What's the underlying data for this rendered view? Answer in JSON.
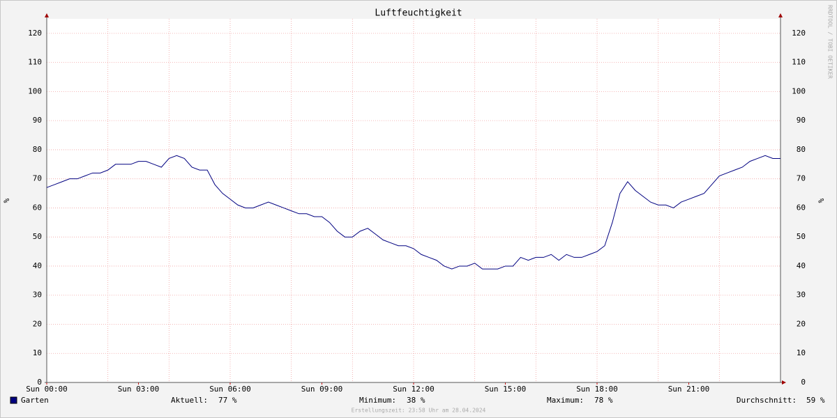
{
  "chart_data": {
    "type": "line",
    "title": "Luftfeuchtigkeit",
    "y_label": "%",
    "y2_label": "%",
    "watermark": "RRDTOOL / TOBI OETIKER",
    "xlim": [
      0,
      24
    ],
    "xticks": [
      {
        "value": 0,
        "label": "Sun 00:00"
      },
      {
        "value": 3,
        "label": "Sun 03:00"
      },
      {
        "value": 6,
        "label": "Sun 06:00"
      },
      {
        "value": 9,
        "label": "Sun 09:00"
      },
      {
        "value": 12,
        "label": "Sun 12:00"
      },
      {
        "value": 15,
        "label": "Sun 15:00"
      },
      {
        "value": 18,
        "label": "Sun 18:00"
      },
      {
        "value": 21,
        "label": "Sun 21:00"
      }
    ],
    "xgrid": [
      2,
      4,
      6,
      8,
      10,
      12,
      14,
      16,
      18,
      20,
      22
    ],
    "ylim": [
      0,
      125
    ],
    "yticks": [
      0,
      10,
      20,
      30,
      40,
      50,
      60,
      70,
      80,
      90,
      100,
      110,
      120
    ],
    "grid": true,
    "x": [
      0,
      0.25,
      0.5,
      0.75,
      1,
      1.25,
      1.5,
      1.75,
      2,
      2.25,
      2.5,
      2.75,
      3,
      3.25,
      3.5,
      3.75,
      4,
      4.25,
      4.5,
      4.75,
      5,
      5.25,
      5.5,
      5.75,
      6,
      6.25,
      6.5,
      6.75,
      7,
      7.25,
      7.5,
      7.75,
      8,
      8.25,
      8.5,
      8.75,
      9,
      9.25,
      9.5,
      9.75,
      10,
      10.25,
      10.5,
      10.75,
      11,
      11.25,
      11.5,
      11.75,
      12,
      12.25,
      12.5,
      12.75,
      13,
      13.25,
      13.5,
      13.75,
      14,
      14.25,
      14.5,
      14.75,
      15,
      15.25,
      15.5,
      15.75,
      16,
      16.25,
      16.5,
      16.75,
      17,
      17.25,
      17.5,
      17.75,
      18,
      18.25,
      18.5,
      18.75,
      19,
      19.25,
      19.5,
      19.75,
      20,
      20.25,
      20.5,
      20.75,
      21,
      21.25,
      21.5,
      21.75,
      22,
      22.25,
      22.5,
      22.75,
      23,
      23.25,
      23.5,
      23.75,
      24
    ],
    "series": [
      {
        "name": "Garten",
        "color": "#000080",
        "values": [
          67,
          68,
          69,
          70,
          70,
          71,
          72,
          72,
          73,
          75,
          75,
          75,
          76,
          76,
          75,
          74,
          77,
          78,
          77,
          74,
          73,
          73,
          68,
          65,
          63,
          61,
          60,
          60,
          61,
          62,
          61,
          60,
          59,
          58,
          58,
          57,
          57,
          55,
          52,
          50,
          50,
          52,
          53,
          51,
          49,
          48,
          47,
          47,
          46,
          44,
          43,
          42,
          40,
          39,
          40,
          40,
          41,
          39,
          39,
          39,
          40,
          40,
          43,
          42,
          43,
          43,
          44,
          42,
          44,
          43,
          43,
          44,
          45,
          47,
          55,
          65,
          69,
          66,
          64,
          62,
          61,
          61,
          60,
          62,
          63,
          64,
          65,
          68,
          71,
          72,
          73,
          74,
          76,
          77,
          78,
          77,
          77
        ]
      }
    ],
    "stats": {
      "current_label": "Aktuell:",
      "current": "77 %",
      "min_label": "Minimum:",
      "min": "38 %",
      "max_label": "Maximum:",
      "max": "78 %",
      "avg_label": "Durchschnitt:",
      "avg": "59 %"
    },
    "footer": "Erstellungszeit: 23:58 Uhr am 28.04.2024"
  }
}
